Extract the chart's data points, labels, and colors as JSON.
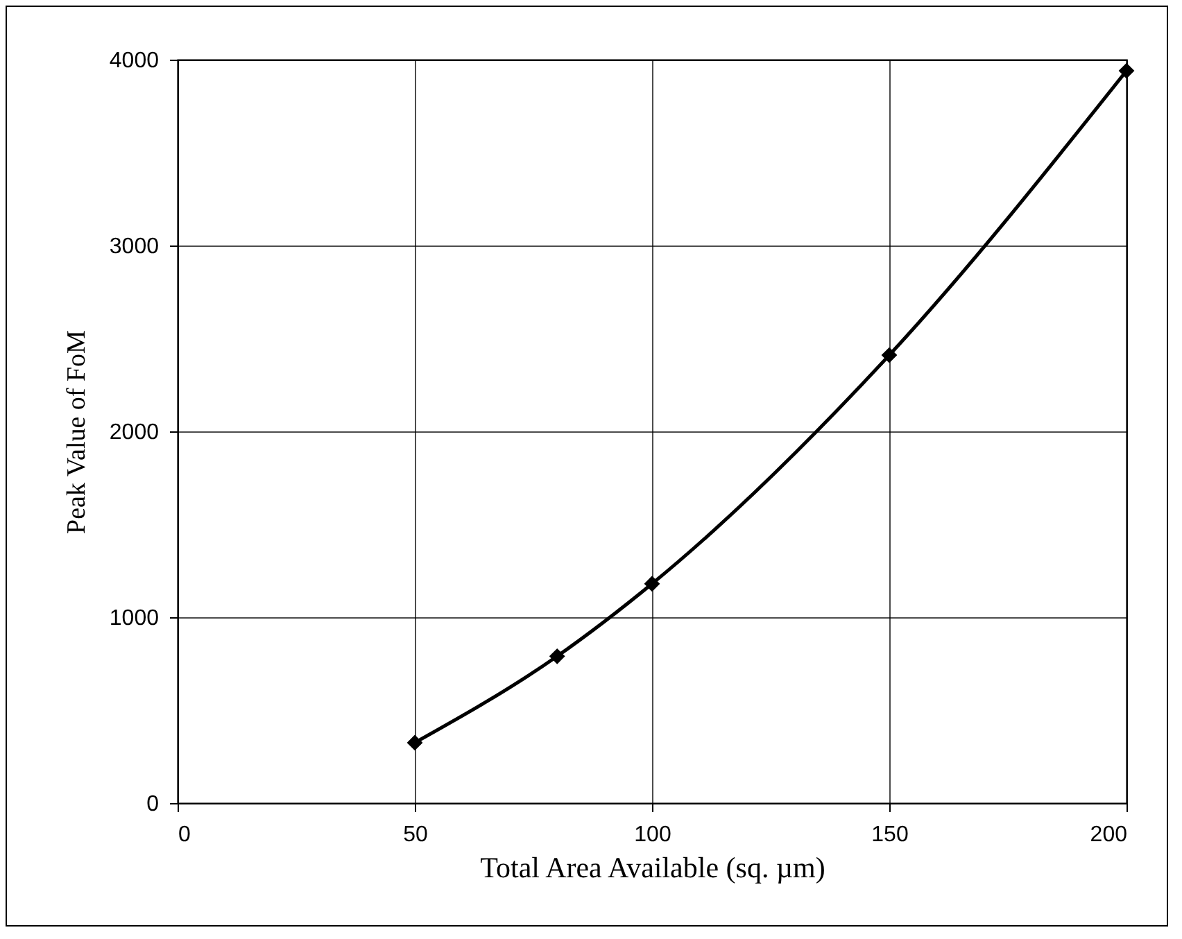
{
  "chart_data": {
    "type": "line",
    "xlabel": "Total Area Available (sq. µm)",
    "ylabel": "Peak Value of FoM",
    "x": [
      50,
      80,
      100,
      150,
      200
    ],
    "series": [
      {
        "color": "#000000",
        "values": [
          325,
          790,
          1180,
          2410,
          3940
        ]
      }
    ],
    "xlim": [
      0,
      200
    ],
    "xticks": [
      0,
      50,
      100,
      150,
      200
    ],
    "ylim": [
      0,
      4000
    ],
    "yticks": [
      0,
      1000,
      2000,
      3000,
      4000
    ],
    "grid": true,
    "marker": "diamond",
    "line_style": "solid",
    "legend": false
  }
}
